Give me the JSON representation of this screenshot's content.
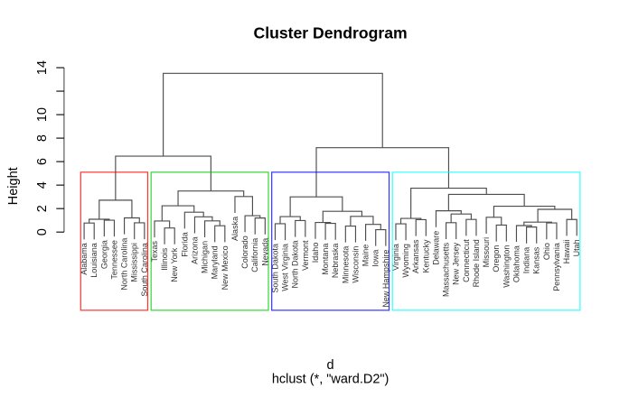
{
  "chart_data": {
    "type": "dendrogram",
    "title": "Cluster Dendrogram",
    "ylabel": "Height",
    "xlabel": "d",
    "subtitle": "hclust (*, \"ward.D2\")",
    "ylim": [
      0,
      14
    ],
    "yticks": {
      "values": [
        0,
        2,
        4,
        6,
        8,
        10,
        12,
        14
      ],
      "labels": [
        "0",
        "2",
        "4",
        "6",
        "8",
        "10",
        "",
        "14"
      ]
    },
    "hang": 0.1,
    "leaves": [
      "Alabama",
      "Louisiana",
      "Georgia",
      "Tennessee",
      "North Carolina",
      "Mississippi",
      "South Carolina",
      "Texas",
      "Illinois",
      "New York",
      "Florida",
      "Arizona",
      "Michigan",
      "Maryland",
      "New Mexico",
      "Alaska",
      "Colorado",
      "California",
      "Nevada",
      "South Dakota",
      "West Virginia",
      "North Dakota",
      "Vermont",
      "Idaho",
      "Montana",
      "Nebraska",
      "Minnesota",
      "Wisconsin",
      "Maine",
      "Iowa",
      "New Hampshire",
      "Virginia",
      "Wyoming",
      "Arkansas",
      "Kentucky",
      "Delaware",
      "Massachusetts",
      "New Jersey",
      "Connecticut",
      "Rhode Island",
      "Missouri",
      "Oregon",
      "Washington",
      "Oklahoma",
      "Indiana",
      "Kansas",
      "Ohio",
      "Pennsylvania",
      "Hawaii",
      "Utah"
    ],
    "merges": [
      [
        -30,
        -31
      ],
      [
        -9,
        -10
      ],
      [
        -45,
        -46
      ],
      [
        -27,
        -28
      ],
      [
        -14,
        -15
      ],
      [
        -44,
        3
      ],
      [
        -42,
        -43
      ],
      [
        -29,
        1
      ],
      [
        -32,
        -33
      ],
      [
        -20,
        -21
      ],
      [
        -25,
        -26
      ],
      [
        -1,
        -2
      ],
      [
        -47,
        -48
      ],
      [
        -6,
        -7
      ],
      [
        -37,
        -38
      ],
      [
        -24,
        11
      ],
      [
        6,
        13
      ],
      [
        -8,
        2
      ],
      [
        -13,
        5
      ],
      [
        -22,
        -23
      ],
      [
        -3,
        -4
      ],
      [
        -34,
        -35
      ],
      [
        -49,
        -50
      ],
      [
        -39,
        -40
      ],
      [
        12,
        21
      ],
      [
        9,
        22
      ],
      [
        -18,
        -19
      ],
      [
        -5,
        14
      ],
      [
        -41,
        7
      ],
      [
        -12,
        19
      ],
      [
        10,
        20
      ],
      [
        4,
        8
      ],
      [
        -17,
        27
      ],
      [
        15,
        24
      ],
      [
        -11,
        30
      ],
      [
        16,
        32
      ],
      [
        -36,
        34
      ],
      [
        17,
        23
      ],
      [
        29,
        38
      ],
      [
        18,
        35
      ],
      [
        25,
        28
      ],
      [
        31,
        36
      ],
      [
        -16,
        33
      ],
      [
        37,
        39
      ],
      [
        40,
        43
      ],
      [
        26,
        44
      ],
      [
        41,
        45
      ],
      [
        42,
        46
      ],
      [
        47,
        48
      ]
    ],
    "heights": [
      0.2058,
      0.3502,
      0.4288,
      0.5131,
      0.5354,
      0.5535,
      0.5935,
      0.6559,
      0.7038,
      0.7109,
      0.7408,
      0.7722,
      0.7781,
      0.7865,
      0.7978,
      0.8164,
      0.8472,
      0.9428,
      0.9513,
      0.9825,
      1.0122,
      1.0598,
      1.071,
      1.0756,
      1.0911,
      1.1606,
      1.1968,
      1.2074,
      1.2601,
      1.2991,
      1.317,
      1.3382,
      1.3901,
      1.5396,
      1.6908,
      1.7691,
      1.8118,
      1.9361,
      2.2032,
      2.2421,
      2.7145,
      2.9946,
      3.025,
      3.2106,
      3.4958,
      3.7341,
      6.4617,
      7.1852,
      13.5144
    ],
    "clusters": {
      "k": 4,
      "sizes": [
        7,
        12,
        12,
        19
      ],
      "rect_top": 5.0979,
      "rect_bottom": -6.66,
      "pad_left": 0.66,
      "pad_right": 0.33,
      "colors": [
        {
          "name": "red",
          "hex": "#FF0000"
        },
        {
          "name": "green3",
          "hex": "#00CD00"
        },
        {
          "name": "blue",
          "hex": "#0000FF"
        },
        {
          "name": "cyan",
          "hex": "#00FFFF"
        }
      ]
    },
    "line_color": "#4d4d4d",
    "text_color": "#000000",
    "background": "#FFFFFF"
  }
}
